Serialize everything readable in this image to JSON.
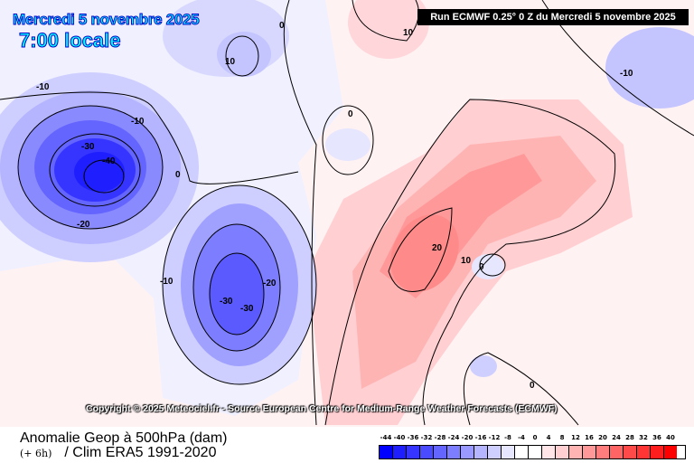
{
  "header": {
    "date": "Mercredi 5 novembre 2025",
    "time": "7:00 locale",
    "run": "Run ECMWF 0.25° 0 Z du Mercredi 5 novembre 2025"
  },
  "copyright": "Copyright © 2025 Meteociel.fr - Source European Centre for Medium-Range Weather Forecasts (ECMWF)",
  "footer": {
    "title": "Anomalie Geop à 500hPa (dam)",
    "step": "(+ 6h)",
    "clim": "/ Clim ERA5 1991-2020"
  },
  "legend": {
    "labels": [
      "-44",
      "-40",
      "-36",
      "-32",
      "-28",
      "-24",
      "-20",
      "-16",
      "-12",
      "-8",
      "-4",
      "0",
      "4",
      "8",
      "12",
      "16",
      "20",
      "24",
      "28",
      "32",
      "36",
      "40"
    ],
    "colors": [
      "#0000ff",
      "#1e1eff",
      "#3535ff",
      "#4a4aff",
      "#6464ff",
      "#7d7dff",
      "#9999ff",
      "#b4b4ff",
      "#cfcfff",
      "#e6e6ff",
      "#ffffff",
      "#ffffff",
      "#ffe4e8",
      "#ffcfd2",
      "#ffb4b4",
      "#ff9999",
      "#ff7d7d",
      "#ff6464",
      "#ff4a4a",
      "#ff3535",
      "#ff1e1e",
      "#ff0000"
    ]
  },
  "contour_labels": [
    "-10",
    "-10",
    "-30",
    "-40",
    "-20",
    "0",
    "10",
    "0",
    "10",
    "-10",
    "0",
    "-10",
    "-30",
    "-30",
    "-20",
    "20",
    "10",
    "0",
    "0"
  ]
}
